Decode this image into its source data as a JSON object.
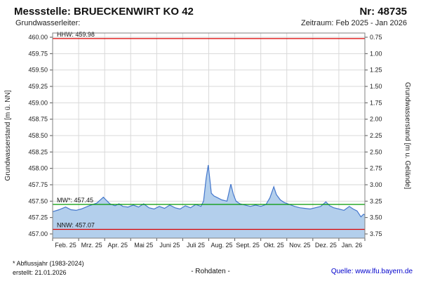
{
  "header": {
    "title": "Messstelle: BRUECKENWIRT KO 42",
    "number": "Nr: 48735",
    "aquifer_label": "Grundwasserleiter:",
    "period": "Zeitraum: Feb 2025 - Jan 2026"
  },
  "footer": {
    "footnote": "* Abflussjahr (1983-2024)",
    "created": "erstellt: 21.01.2026",
    "center": "- Rohdaten -",
    "source": "Quelle: www.lfu.bayern.de"
  },
  "colors": {
    "grid": "#d9d9d9",
    "frame": "#808080",
    "tick": "#555555",
    "text": "#222222",
    "series_line": "#4477cc",
    "series_fill": "#b3cfec",
    "hhw_nnw": "#dd0000",
    "mw": "#009900",
    "link": "#0000cc"
  },
  "chart_data": {
    "type": "area",
    "title": "",
    "x_axis": {
      "labels": [
        "Feb. 25",
        "Mrz. 25",
        "Apr. 25",
        "Mai 25",
        "Juni 25",
        "Juli 25",
        "Aug. 25",
        "Sept. 25",
        "Okt. 25",
        "Nov. 25",
        "Dez. 25",
        "Jan. 26"
      ]
    },
    "y_left": {
      "label": "Grundwasserstand [m ü. NN]",
      "min": 457.0,
      "max": 460.0,
      "step": 0.25,
      "ticks": [
        "460.00",
        "459.75",
        "459.50",
        "459.25",
        "459.00",
        "458.75",
        "458.50",
        "458.25",
        "458.00",
        "457.75",
        "457.50",
        "457.25",
        "457.00"
      ]
    },
    "y_right": {
      "label": "Grundwasserstand [m u. Gelände]",
      "min": 0.75,
      "max": 3.75,
      "step": 0.25,
      "ticks": [
        "0.75",
        "1.00",
        "1.25",
        "1.50",
        "1.75",
        "2.00",
        "2.25",
        "2.50",
        "2.75",
        "3.00",
        "3.25",
        "3.50",
        "3.75"
      ]
    },
    "reference_lines": [
      {
        "name": "hhw",
        "label": "HHW: 459.98",
        "value": 459.98,
        "color": "#dd0000"
      },
      {
        "name": "mw",
        "label": "MW*: 457.45",
        "value": 457.45,
        "color": "#009900"
      },
      {
        "name": "nnw",
        "label": "NNW: 457.07",
        "value": 457.07,
        "color": "#dd0000"
      }
    ],
    "series": [
      {
        "name": "Rohdaten",
        "color": "#4477cc",
        "fill": "#b3cfec",
        "points": [
          [
            0.0,
            457.34
          ],
          [
            0.25,
            457.37
          ],
          [
            0.5,
            457.41
          ],
          [
            0.7,
            457.37
          ],
          [
            0.9,
            457.36
          ],
          [
            1.1,
            457.38
          ],
          [
            1.4,
            457.43
          ],
          [
            1.7,
            457.47
          ],
          [
            1.95,
            457.56
          ],
          [
            2.05,
            457.52
          ],
          [
            2.2,
            457.46
          ],
          [
            2.4,
            457.43
          ],
          [
            2.55,
            457.46
          ],
          [
            2.7,
            457.42
          ],
          [
            2.9,
            457.41
          ],
          [
            3.1,
            457.44
          ],
          [
            3.3,
            457.41
          ],
          [
            3.5,
            457.46
          ],
          [
            3.7,
            457.4
          ],
          [
            3.9,
            457.38
          ],
          [
            4.1,
            457.42
          ],
          [
            4.3,
            457.39
          ],
          [
            4.5,
            457.44
          ],
          [
            4.7,
            457.4
          ],
          [
            4.9,
            457.38
          ],
          [
            5.1,
            457.43
          ],
          [
            5.3,
            457.4
          ],
          [
            5.5,
            457.45
          ],
          [
            5.7,
            457.42
          ],
          [
            5.8,
            457.5
          ],
          [
            5.9,
            457.85
          ],
          [
            5.98,
            458.05
          ],
          [
            6.05,
            457.8
          ],
          [
            6.1,
            457.62
          ],
          [
            6.2,
            457.58
          ],
          [
            6.35,
            457.55
          ],
          [
            6.5,
            457.52
          ],
          [
            6.7,
            457.5
          ],
          [
            6.85,
            457.76
          ],
          [
            6.95,
            457.6
          ],
          [
            7.05,
            457.5
          ],
          [
            7.2,
            457.46
          ],
          [
            7.4,
            457.44
          ],
          [
            7.6,
            457.42
          ],
          [
            7.8,
            457.44
          ],
          [
            8.0,
            457.42
          ],
          [
            8.2,
            457.45
          ],
          [
            8.35,
            457.55
          ],
          [
            8.5,
            457.72
          ],
          [
            8.6,
            457.6
          ],
          [
            8.75,
            457.52
          ],
          [
            8.9,
            457.48
          ],
          [
            9.1,
            457.45
          ],
          [
            9.3,
            457.42
          ],
          [
            9.5,
            457.4
          ],
          [
            9.7,
            457.39
          ],
          [
            9.9,
            457.38
          ],
          [
            10.1,
            457.4
          ],
          [
            10.3,
            457.42
          ],
          [
            10.5,
            457.49
          ],
          [
            10.65,
            457.43
          ],
          [
            10.8,
            457.4
          ],
          [
            11.0,
            457.38
          ],
          [
            11.2,
            457.36
          ],
          [
            11.4,
            457.42
          ],
          [
            11.55,
            457.38
          ],
          [
            11.7,
            457.35
          ],
          [
            11.85,
            457.26
          ],
          [
            11.95,
            457.3
          ],
          [
            12.0,
            457.29
          ]
        ]
      }
    ]
  }
}
